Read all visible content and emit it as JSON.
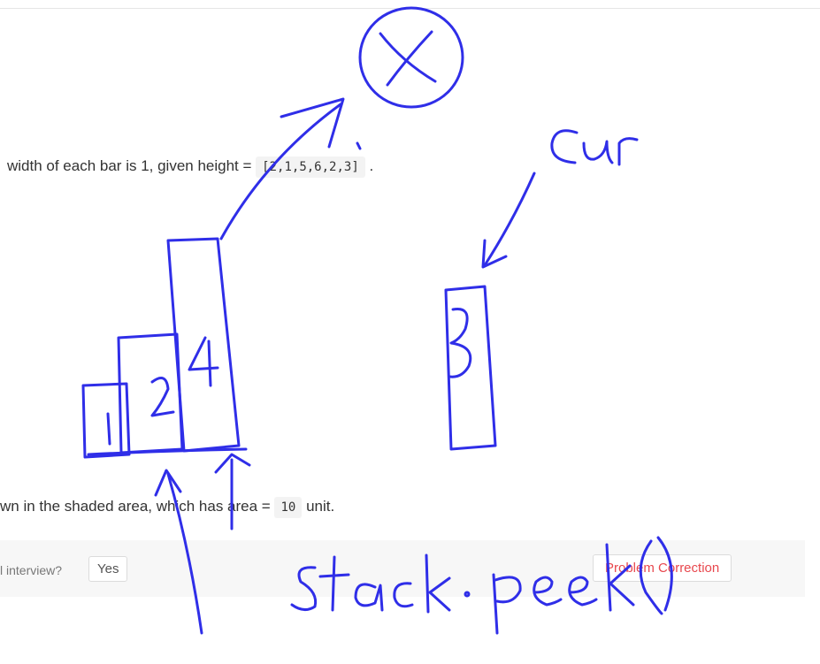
{
  "problem": {
    "line1_text": "width of each bar is 1, given height =",
    "line1_code": "[2,1,5,6,2,3]",
    "line1_end": ".",
    "line2_text": "wn in the shaded area, which has area =",
    "line2_code": "10",
    "line2_end": "unit."
  },
  "footer": {
    "question": "l interview?",
    "yes_label": "Yes",
    "correction_label": "Problem Correction"
  },
  "annotations": {
    "ink_color": "#2f2ee8",
    "circle_label": "X",
    "cur_label": "Cur",
    "bar_labels": [
      "1",
      "2",
      "4",
      "3"
    ],
    "bottom_label": "stack.peek()"
  }
}
